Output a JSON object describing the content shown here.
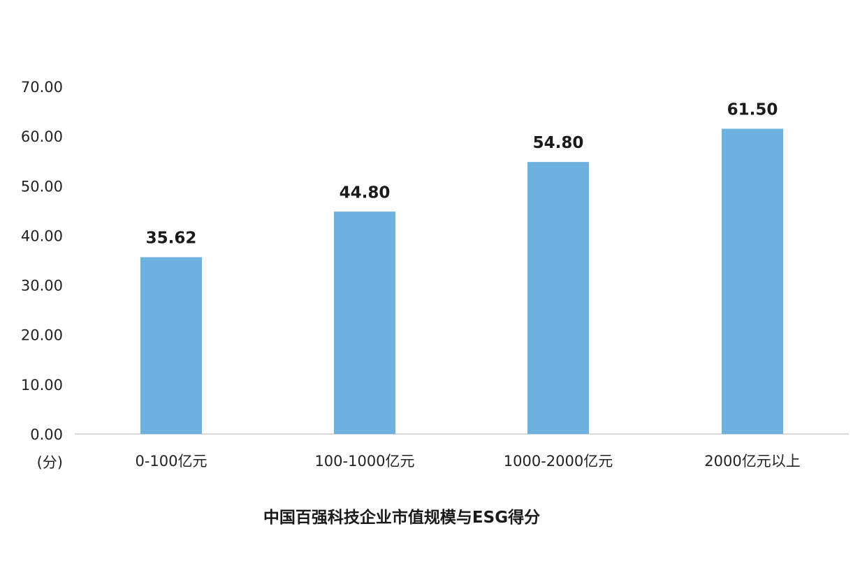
{
  "chart_data": {
    "type": "bar",
    "title": "中国百强科技企业市值规模与ESG得分",
    "ylabel": "(分)",
    "xlabel": "",
    "categories": [
      "0-100亿元",
      "100-1000亿元",
      "1000-2000亿元",
      "2000亿元以上"
    ],
    "values": [
      35.62,
      44.8,
      54.8,
      61.5
    ],
    "data_labels": [
      "35.62",
      "44.80",
      "54.80",
      "61.50"
    ],
    "ylim": [
      0,
      70
    ],
    "yticks": [
      "0.00",
      "10.00",
      "20.00",
      "30.00",
      "40.00",
      "50.00",
      "60.00",
      "70.00"
    ],
    "grid": false,
    "legend": "none",
    "colors": {
      "bar": "#6db1de",
      "axis": "#d9d9d9"
    }
  }
}
